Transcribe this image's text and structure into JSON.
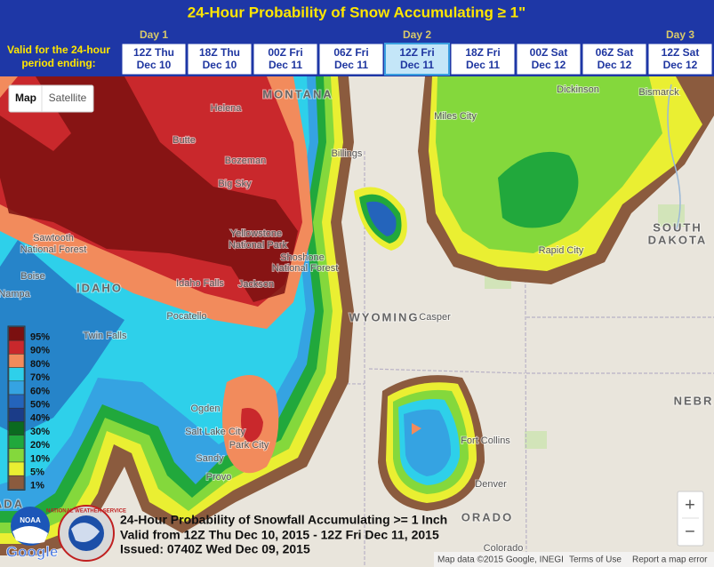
{
  "header": {
    "title": "24-Hour Probability of Snow Accumulating ≥ 1\"",
    "period_label": [
      "Valid for the 24-hour",
      "period ending:"
    ],
    "days": [
      "Day 1",
      "Day 2",
      "Day 3"
    ]
  },
  "tabs": [
    {
      "line1": "12Z Thu",
      "line2": "Dec 10",
      "selected": false
    },
    {
      "line1": "18Z Thu",
      "line2": "Dec 10",
      "selected": false
    },
    {
      "line1": "00Z Fri",
      "line2": "Dec 11",
      "selected": false
    },
    {
      "line1": "06Z Fri",
      "line2": "Dec 11",
      "selected": false
    },
    {
      "line1": "12Z Fri",
      "line2": "Dec 11",
      "selected": true
    },
    {
      "line1": "18Z Fri",
      "line2": "Dec 11",
      "selected": false
    },
    {
      "line1": "00Z Sat",
      "line2": "Dec 12",
      "selected": false
    },
    {
      "line1": "06Z Sat",
      "line2": "Dec 12",
      "selected": false
    },
    {
      "line1": "12Z Sat",
      "line2": "Dec 12",
      "selected": false
    }
  ],
  "map_controls": {
    "buttons": [
      "Map",
      "Satellite"
    ],
    "zoom": [
      "+",
      "−"
    ]
  },
  "places": [
    "MONTANA",
    "Helena",
    "Butte",
    "Bozeman",
    "Big Sky",
    "Billings",
    "Miles City",
    "Dickinson",
    "Bismarck",
    "SOUTH",
    "DAKOTA",
    "Rapid City",
    "Yellowstone",
    "National Park",
    "Shoshone",
    "National Forest",
    "Sawtooth",
    "National Forest",
    "IDAHO",
    "Idaho Falls",
    "Jackson",
    "Boise",
    "Nampa",
    "Pocatello",
    "Twin Falls",
    "WYOMING",
    "Casper",
    "Ogden",
    "Salt Lake City",
    "Park City",
    "Sandy",
    "Provo",
    "Fort Collins",
    "Denver",
    "ORADO",
    "Colorado",
    "NEBR",
    "ADA"
  ],
  "legend": [
    {
      "label": "95%",
      "color": "#7b1010"
    },
    {
      "label": "90%",
      "color": "#c9282c"
    },
    {
      "label": "80%",
      "color": "#f28b5c"
    },
    {
      "label": "70%",
      "color": "#2ed0ea"
    },
    {
      "label": "60%",
      "color": "#35a3e2"
    },
    {
      "label": "50%",
      "color": "#2464bb"
    },
    {
      "label": "40%",
      "color": "#1b3c88"
    },
    {
      "label": "30%",
      "color": "#0b6a20"
    },
    {
      "label": "20%",
      "color": "#21a83c"
    },
    {
      "label": "10%",
      "color": "#84d83c"
    },
    {
      "label": "5%",
      "color": "#eaef32"
    },
    {
      "label": "1%",
      "color": "#8b5b3e"
    }
  ],
  "caption": [
    "24-Hour Probability of Snowfall Accumulating >= 1 Inch",
    "Valid from 12Z Thu Dec 10, 2015 - 12Z Fri Dec 11, 2015",
    "Issued: 0740Z Wed Dec 09, 2015"
  ],
  "logos": [
    "NOAA",
    "NATIONAL WEATHER SERVICE",
    "Google"
  ],
  "attribution": [
    "Map data ©2015 Google, INEGI",
    "Terms of Use",
    "Report a map error"
  ]
}
